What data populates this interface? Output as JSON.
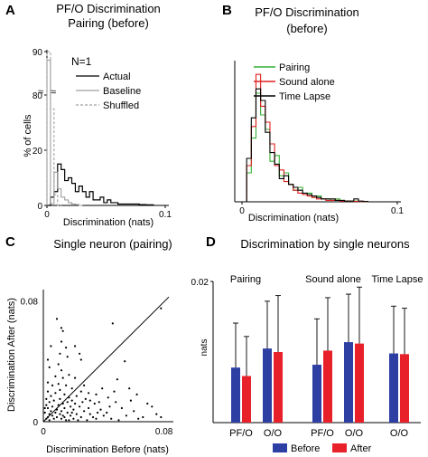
{
  "figure": {
    "panels": {
      "A": "A",
      "B": "B",
      "C": "C",
      "D": "D"
    }
  },
  "chart_data": [
    {
      "panel": "A",
      "type": "histogram",
      "title": [
        "PF/O Discrimination",
        "Pairing (before)"
      ],
      "annotation": "N=1",
      "xlabel": "Discrimination (nats)",
      "ylabel": "% of cells",
      "xlim": [
        0,
        0.1
      ],
      "xticks": [
        "0",
        "0.1"
      ],
      "yticks": [
        "0",
        "20",
        "80",
        "90"
      ],
      "axis_break": true,
      "legend": [
        "Actual",
        "Baseline",
        "Shuffled"
      ],
      "legend_position": "top-right",
      "series": [
        {
          "name": "Actual",
          "color": "#000000",
          "style": "solid",
          "bins": [
            0.0,
            0.003,
            0.006,
            0.009,
            0.012,
            0.015,
            0.018,
            0.021,
            0.024,
            0.027,
            0.03,
            0.033,
            0.036,
            0.039,
            0.042,
            0.045,
            0.048,
            0.051,
            0.054,
            0.057,
            0.06,
            0.063,
            0.066,
            0.069,
            0.072,
            0.075,
            0.078,
            0.081,
            0.084,
            0.087,
            0.09
          ],
          "values": [
            0,
            3,
            5,
            15,
            13,
            9,
            10,
            8,
            5,
            7,
            5,
            3,
            5,
            2,
            2,
            3,
            1,
            2,
            1,
            1,
            0.5,
            0.5,
            0.5,
            0.5,
            0.5,
            0.5,
            0.3,
            0.3,
            0.2,
            0.2
          ]
        },
        {
          "name": "Baseline",
          "color": "#a0a0a0",
          "style": "solid",
          "bins": [
            0.0,
            0.003,
            0.006,
            0.009,
            0.012,
            0.015,
            0.018,
            0.021,
            0.024,
            0.027,
            0.03
          ],
          "values": [
            88,
            55,
            12,
            6,
            3,
            2,
            1,
            0.5,
            0.3,
            0
          ]
        },
        {
          "name": "Shuffled",
          "color": "#a0a0a0",
          "style": "dashed",
          "bins": [
            0.0,
            0.003,
            0.006,
            0.009,
            0.012
          ],
          "values": [
            90,
            35,
            4,
            0
          ]
        }
      ]
    },
    {
      "panel": "B",
      "type": "histogram",
      "title": [
        "PF/O Discrimination",
        "(before)"
      ],
      "xlabel": "Discrimination (nats)",
      "xlim": [
        0,
        0.1
      ],
      "xticks": [
        "0",
        "0.1"
      ],
      "legend": [
        "Pairing",
        "Sound alone",
        "Time Lapse"
      ],
      "legend_position": "top-right",
      "series": [
        {
          "name": "Pairing",
          "color": "#33b233",
          "bins": [
            0.0,
            0.003,
            0.006,
            0.009,
            0.012,
            0.015,
            0.018,
            0.021,
            0.024,
            0.027,
            0.03,
            0.033,
            0.036,
            0.039,
            0.042,
            0.045,
            0.048,
            0.051,
            0.054,
            0.057,
            0.06,
            0.063,
            0.066,
            0.069,
            0.072,
            0.075,
            0.078,
            0.081
          ],
          "values": [
            0,
            20,
            44,
            75,
            60,
            50,
            28,
            32,
            18,
            20,
            12,
            8,
            10,
            5,
            6,
            3,
            4,
            2,
            2,
            1,
            2,
            1,
            0.5,
            0.5,
            0.5,
            0.3,
            0.2
          ]
        },
        {
          "name": "Sound alone",
          "color": "#e02020",
          "bins": [
            0.0,
            0.003,
            0.006,
            0.009,
            0.012,
            0.015,
            0.018,
            0.021,
            0.024,
            0.027,
            0.03,
            0.033,
            0.036,
            0.039,
            0.042,
            0.045,
            0.048,
            0.051,
            0.054,
            0.057,
            0.06,
            0.063,
            0.066,
            0.069,
            0.072,
            0.075,
            0.078,
            0.081
          ],
          "values": [
            0,
            25,
            52,
            88,
            66,
            55,
            40,
            25,
            22,
            14,
            12,
            8,
            6,
            5,
            4,
            3,
            2,
            2,
            1,
            1,
            1,
            0.5,
            0.5,
            0.5,
            0.3,
            0.2,
            0.2
          ]
        },
        {
          "name": "Time Lapse",
          "color": "#000000",
          "bins": [
            0.0,
            0.003,
            0.006,
            0.009,
            0.012,
            0.015,
            0.018,
            0.021,
            0.024,
            0.027,
            0.03,
            0.033,
            0.036,
            0.039,
            0.042,
            0.045,
            0.048,
            0.051,
            0.054,
            0.057,
            0.06,
            0.063,
            0.066,
            0.069,
            0.072,
            0.075,
            0.078,
            0.081
          ],
          "values": [
            0,
            30,
            58,
            78,
            70,
            48,
            34,
            26,
            16,
            18,
            12,
            10,
            8,
            6,
            5,
            4,
            3,
            2,
            2,
            2,
            1,
            1,
            0.5,
            0.5,
            2,
            0.5,
            0.3
          ]
        }
      ]
    },
    {
      "panel": "C",
      "type": "scatter",
      "title": "Single neuron (pairing)",
      "xlabel": "Discrimination Before (nats)",
      "ylabel": "Discrimination After (nats)",
      "xlim": [
        0,
        0.085
      ],
      "ylim": [
        0,
        0.085
      ],
      "xticks": [
        "0",
        "0.08"
      ],
      "yticks": [
        "0",
        "0.08"
      ],
      "diagonal": "identity",
      "points": [
        [
          0.009,
          0.068
        ],
        [
          0.012,
          0.062
        ],
        [
          0.013,
          0.06
        ],
        [
          0.012,
          0.053
        ],
        [
          0.005,
          0.05
        ],
        [
          0.015,
          0.049
        ],
        [
          0.011,
          0.045
        ],
        [
          0.016,
          0.043
        ],
        [
          0.003,
          0.041
        ],
        [
          0.021,
          0.05
        ],
        [
          0.024,
          0.045
        ],
        [
          0.025,
          0.041
        ],
        [
          0.01,
          0.038
        ],
        [
          0.004,
          0.036
        ],
        [
          0.012,
          0.034
        ],
        [
          0.017,
          0.031
        ],
        [
          0.008,
          0.03
        ],
        [
          0.013,
          0.029
        ],
        [
          0.021,
          0.029
        ],
        [
          0.003,
          0.026
        ],
        [
          0.01,
          0.025
        ],
        [
          0.006,
          0.024
        ],
        [
          0.015,
          0.024
        ],
        [
          0.019,
          0.022
        ],
        [
          0.011,
          0.021
        ],
        [
          0.025,
          0.02
        ],
        [
          0.003,
          0.02
        ],
        [
          0.008,
          0.019
        ],
        [
          0.014,
          0.018
        ],
        [
          0.022,
          0.017
        ],
        [
          0.005,
          0.017
        ],
        [
          0.017,
          0.016
        ],
        [
          0.011,
          0.015
        ],
        [
          0.028,
          0.015
        ],
        [
          0.007,
          0.014
        ],
        [
          0.016,
          0.013
        ],
        [
          0.004,
          0.013
        ],
        [
          0.013,
          0.012
        ],
        [
          0.021,
          0.012
        ],
        [
          0.034,
          0.012
        ],
        [
          0.01,
          0.011
        ],
        [
          0.018,
          0.01
        ],
        [
          0.006,
          0.01
        ],
        [
          0.024,
          0.01
        ],
        [
          0.003,
          0.009
        ],
        [
          0.014,
          0.009
        ],
        [
          0.03,
          0.009
        ],
        [
          0.009,
          0.008
        ],
        [
          0.02,
          0.008
        ],
        [
          0.012,
          0.007
        ],
        [
          0.005,
          0.007
        ],
        [
          0.027,
          0.007
        ],
        [
          0.016,
          0.006
        ],
        [
          0.036,
          0.006
        ],
        [
          0.008,
          0.006
        ],
        [
          0.022,
          0.005
        ],
        [
          0.004,
          0.005
        ],
        [
          0.011,
          0.005
        ],
        [
          0.031,
          0.005
        ],
        [
          0.018,
          0.004
        ],
        [
          0.006,
          0.004
        ],
        [
          0.04,
          0.004
        ],
        [
          0.014,
          0.003
        ],
        [
          0.025,
          0.003
        ],
        [
          0.009,
          0.003
        ],
        [
          0.003,
          0.003
        ],
        [
          0.033,
          0.003
        ],
        [
          0.02,
          0.002
        ],
        [
          0.012,
          0.002
        ],
        [
          0.045,
          0.002
        ],
        [
          0.007,
          0.002
        ],
        [
          0.017,
          0.001
        ],
        [
          0.029,
          0.001
        ],
        [
          0.004,
          0.001
        ],
        [
          0.05,
          0.001
        ],
        [
          0.038,
          0.008
        ],
        [
          0.044,
          0.01
        ],
        [
          0.055,
          0.004
        ],
        [
          0.06,
          0.007
        ],
        [
          0.048,
          0.013
        ],
        [
          0.066,
          0.003
        ],
        [
          0.058,
          0.014
        ],
        [
          0.043,
          0.016
        ],
        [
          0.035,
          0.018
        ],
        [
          0.069,
          0.012
        ],
        [
          0.072,
          0.01
        ],
        [
          0.052,
          0.009
        ],
        [
          0.062,
          0.018
        ],
        [
          0.075,
          0.005
        ],
        [
          0.078,
          0.003
        ],
        [
          0.057,
          0.022
        ],
        [
          0.047,
          0.02
        ],
        [
          0.039,
          0.022
        ],
        [
          0.03,
          0.019
        ],
        [
          0.027,
          0.024
        ],
        [
          0.054,
          0.04
        ],
        [
          0.049,
          0.028
        ],
        [
          0.046,
          0.065
        ],
        [
          0.078,
          0.075
        ],
        [
          0.063,
          0.002
        ],
        [
          0.002,
          0.015
        ],
        [
          0.002,
          0.011
        ],
        [
          0.001,
          0.006
        ],
        [
          0.002,
          0.002
        ],
        [
          0.001,
          0.009
        ],
        [
          0.015,
          0.001
        ],
        [
          0.023,
          0.001
        ],
        [
          0.019,
          0.014
        ],
        [
          0.026,
          0.013
        ],
        [
          0.031,
          0.014
        ],
        [
          0.037,
          0.013
        ],
        [
          0.042,
          0.006
        ],
        [
          0.035,
          0.002
        ],
        [
          0.013,
          0.004
        ],
        [
          0.019,
          0.006
        ]
      ]
    },
    {
      "panel": "D",
      "type": "bar",
      "title": "Discrimination by single neurons",
      "ylabel": "nats",
      "ylim": [
        0,
        0.02
      ],
      "yticks": [
        "0.02"
      ],
      "group_labels": [
        "Pairing",
        "Sound alone",
        "Time Lapse"
      ],
      "categories": [
        "PF/O",
        "O/O",
        "PF/O",
        "O/O",
        "O/O"
      ],
      "legend": [
        "Before",
        "After"
      ],
      "legend_position": "bottom",
      "series": [
        {
          "name": "Before",
          "color": "#2e3fa3",
          "values": [
            0.0078,
            0.0105,
            0.0082,
            0.0114,
            0.0098
          ],
          "errors": [
            0.0063,
            0.0067,
            0.0065,
            0.0068,
            0.0067
          ]
        },
        {
          "name": "After",
          "color": "#e8202a",
          "values": [
            0.0066,
            0.01,
            0.0102,
            0.0112,
            0.0097
          ],
          "errors": [
            0.0056,
            0.008,
            0.0075,
            0.008,
            0.0065
          ]
        }
      ]
    }
  ]
}
